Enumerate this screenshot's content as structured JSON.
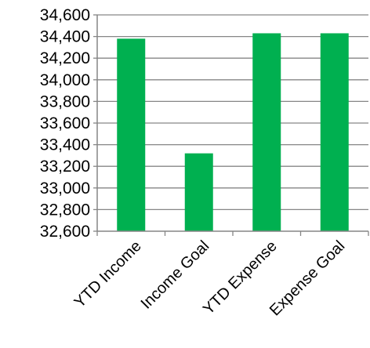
{
  "chart_data": {
    "type": "bar",
    "categories": [
      "YTD Income",
      "Income Goal",
      "YTD Expense",
      "Expense Goal"
    ],
    "values": [
      34380,
      33320,
      34430,
      34430
    ],
    "ylim": [
      32600,
      34600
    ],
    "yticks": [
      "32,600",
      "32,800",
      "33,000",
      "33,200",
      "33,400",
      "33,600",
      "33,800",
      "34,000",
      "34,200",
      "34,400",
      "34,600"
    ],
    "grid": true,
    "legend": "none",
    "colors": {
      "bar": "#00b050",
      "grid": "#868686",
      "axis": "#868686",
      "text": "#000000"
    }
  }
}
